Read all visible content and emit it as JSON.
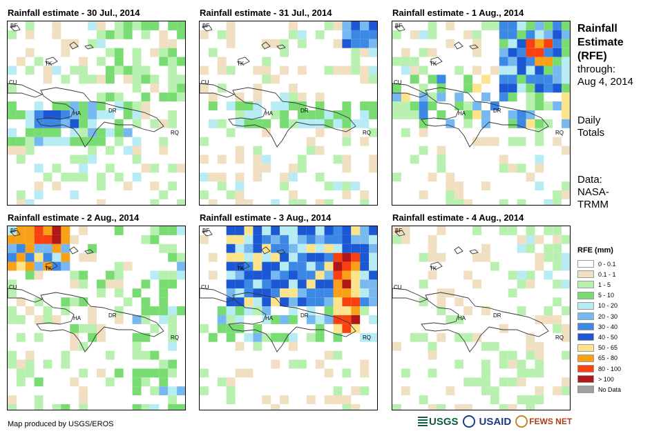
{
  "panels": [
    {
      "title": "Rainfall estimate - 30 Jul., 2014"
    },
    {
      "title": "Rainfall estimate - 31 Jul., 2014"
    },
    {
      "title": "Rainfall estimate - 1 Aug., 2014"
    },
    {
      "title": "Rainfall estimate - 2 Aug., 2014"
    },
    {
      "title": "Rainfall estimate - 3 Aug., 2014"
    },
    {
      "title": "Rainfall estimate - 4 Aug., 2014"
    }
  ],
  "map_labels": {
    "bf": "BF",
    "tk": "TK",
    "cu": "CU",
    "ha": "HA",
    "dr": "DR",
    "rq": "RQ"
  },
  "side": {
    "title_line1": "Rainfall",
    "title_line2": "Estimate",
    "title_line3": "(RFE)",
    "through": "through:",
    "date": "Aug 4, 2014",
    "daily1": "Daily",
    "daily2": "Totals",
    "data1": "Data:",
    "data2": "NASA-",
    "data3": "TRMM"
  },
  "legend": {
    "title": "RFE (mm)",
    "items": [
      {
        "label": "0 - 0.1",
        "color": "#ffffff"
      },
      {
        "label": "0.1 - 1",
        "color": "#f0dfc0"
      },
      {
        "label": "1 - 5",
        "color": "#b8f0b0"
      },
      {
        "label": "5 - 10",
        "color": "#78dc72"
      },
      {
        "label": "10 - 20",
        "color": "#b8ecf4"
      },
      {
        "label": "20 - 30",
        "color": "#78b8f0"
      },
      {
        "label": "30 - 40",
        "color": "#3c88e4"
      },
      {
        "label": "40 - 50",
        "color": "#1c58d4"
      },
      {
        "label": "50 - 65",
        "color": "#fce48c"
      },
      {
        "label": "65 - 80",
        "color": "#f8a018"
      },
      {
        "label": "80 - 100",
        "color": "#f84010"
      },
      {
        "label": "> 100",
        "color": "#b01818"
      },
      {
        "label": "No Data",
        "color": "#a0a0a0"
      }
    ]
  },
  "footer": "Map produced by USGS/EROS",
  "logos": {
    "usgs": "USGS",
    "usaid": "USAID",
    "fews": "FEWS NET"
  }
}
